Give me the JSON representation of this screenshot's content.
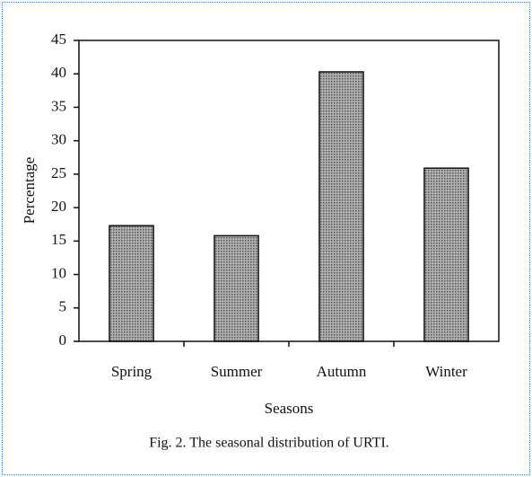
{
  "chart_data": {
    "type": "bar",
    "categories": [
      "Spring",
      "Summer",
      "Autumn",
      "Winter"
    ],
    "values": [
      17.3,
      15.8,
      40.3,
      25.9
    ],
    "color": "#8c8c8c",
    "ylim": [
      0,
      45
    ],
    "yticks": [
      0,
      5,
      10,
      15,
      20,
      25,
      30,
      35,
      40,
      45
    ],
    "x_label": "Seasons",
    "y_label": "Percentage",
    "caption": "Fig. 2. The seasonal distribution of URTI.",
    "grid": false
  }
}
